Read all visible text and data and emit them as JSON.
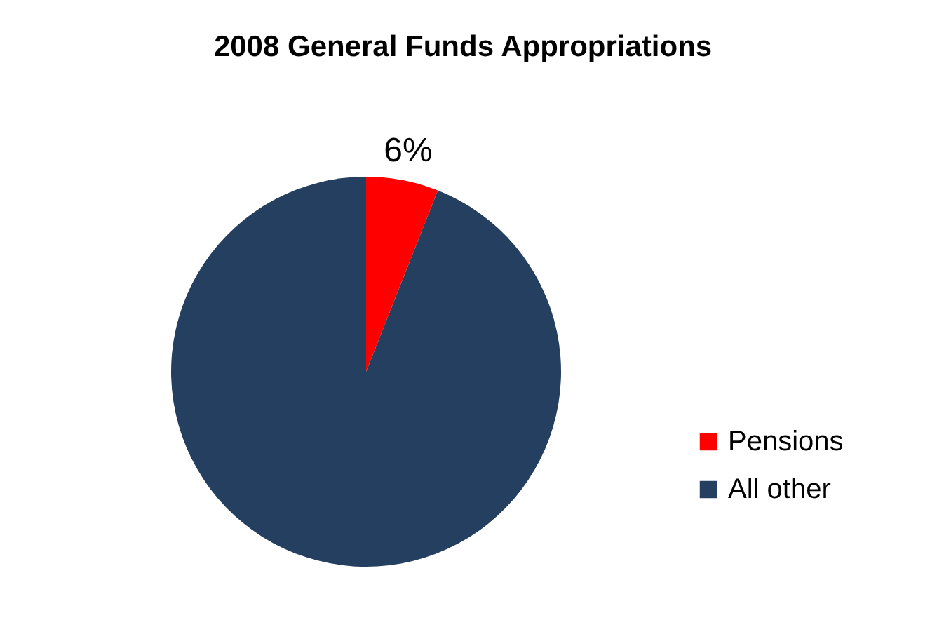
{
  "chart_data": {
    "type": "pie",
    "title": "2008 General Funds Appropriations",
    "categories": [
      "Pensions",
      "All other"
    ],
    "values": [
      6,
      94
    ],
    "colors": [
      "#ff0000",
      "#243f60"
    ],
    "value_labels": [
      "6%",
      null
    ],
    "legend": "right"
  }
}
